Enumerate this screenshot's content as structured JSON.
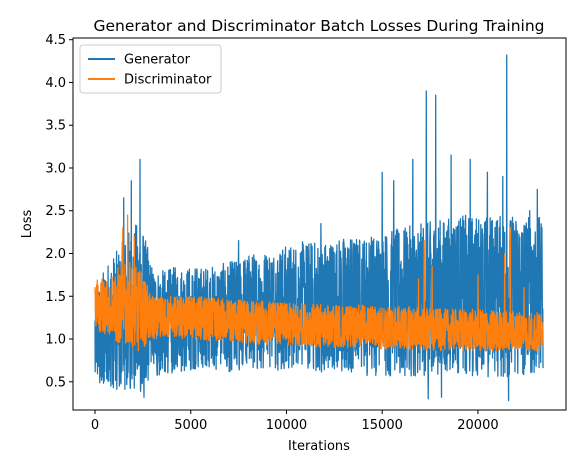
{
  "chart_data": {
    "type": "line",
    "title": "Generator and Discriminator Batch Losses During Training",
    "xlabel": "Iterations",
    "ylabel": "Loss",
    "xlim": [
      -1150,
      24600
    ],
    "ylim": [
      0.17,
      4.52
    ],
    "x_ticks": [
      0,
      5000,
      10000,
      15000,
      20000
    ],
    "x_tick_labels": [
      "0",
      "5000",
      "10000",
      "15000",
      "20000"
    ],
    "y_ticks": [
      0.5,
      1.0,
      1.5,
      2.0,
      2.5,
      3.0,
      3.5,
      4.0,
      4.5
    ],
    "y_tick_labels": [
      "0.5",
      "1.0",
      "1.5",
      "2.0",
      "2.5",
      "3.0",
      "3.5",
      "4.0",
      "4.5"
    ],
    "grid": false,
    "legend_position": "top-left",
    "series": [
      {
        "name": "Generator",
        "color": "#1f77b4",
        "x": [
          0,
          600,
          1200,
          1800,
          2400,
          3000,
          3600,
          4200,
          4800,
          5400,
          6000,
          7000,
          8000,
          9000,
          10000,
          11000,
          12000,
          13000,
          14000,
          15000,
          16000,
          17000,
          18000,
          19000,
          20000,
          21000,
          22000,
          23000,
          23400
        ],
        "mean": [
          0.95,
          1.05,
          1.15,
          1.25,
          1.3,
          1.15,
          1.2,
          1.2,
          1.22,
          1.25,
          1.25,
          1.28,
          1.3,
          1.32,
          1.35,
          1.38,
          1.4,
          1.42,
          1.45,
          1.48,
          1.5,
          1.52,
          1.55,
          1.55,
          1.56,
          1.58,
          1.58,
          1.6,
          1.6
        ],
        "low": [
          0.48,
          0.45,
          0.4,
          0.4,
          0.38,
          0.55,
          0.6,
          0.6,
          0.62,
          0.65,
          0.65,
          0.62,
          0.65,
          0.65,
          0.62,
          0.62,
          0.6,
          0.6,
          0.58,
          0.55,
          0.55,
          0.55,
          0.55,
          0.55,
          0.55,
          0.55,
          0.55,
          0.58,
          0.6
        ],
        "high": [
          1.55,
          1.9,
          2.05,
          2.3,
          2.4,
          1.85,
          1.8,
          1.85,
          1.85,
          1.85,
          1.85,
          1.9,
          2.0,
          2.05,
          2.1,
          2.15,
          2.15,
          2.2,
          2.2,
          2.25,
          2.3,
          2.35,
          2.4,
          2.45,
          2.45,
          2.45,
          2.45,
          2.45,
          2.4
        ],
        "spikes": [
          [
            1500,
            2.65
          ],
          [
            1900,
            2.85
          ],
          [
            2350,
            3.1
          ],
          [
            2550,
            0.32
          ],
          [
            7500,
            2.15
          ],
          [
            11800,
            2.35
          ],
          [
            15000,
            2.95
          ],
          [
            15600,
            2.85
          ],
          [
            16600,
            3.1
          ],
          [
            17300,
            3.9
          ],
          [
            17400,
            0.3
          ],
          [
            17800,
            3.85
          ],
          [
            18100,
            0.32
          ],
          [
            18600,
            3.15
          ],
          [
            19600,
            3.1
          ],
          [
            20500,
            2.95
          ],
          [
            21300,
            2.9
          ],
          [
            21500,
            4.32
          ],
          [
            21600,
            0.28
          ],
          [
            22700,
            2.5
          ],
          [
            23100,
            2.75
          ]
        ]
      },
      {
        "name": "Discriminator",
        "color": "#ff7f0e",
        "x": [
          0,
          600,
          1200,
          1800,
          2400,
          3000,
          3600,
          4200,
          4800,
          5400,
          6000,
          7000,
          8000,
          9000,
          10000,
          11000,
          12000,
          13000,
          14000,
          15000,
          16000,
          17000,
          18000,
          19000,
          20000,
          21000,
          22000,
          23000,
          23400
        ],
        "mean": [
          1.35,
          1.3,
          1.25,
          1.3,
          1.2,
          1.22,
          1.22,
          1.22,
          1.2,
          1.2,
          1.2,
          1.2,
          1.18,
          1.17,
          1.16,
          1.15,
          1.14,
          1.13,
          1.12,
          1.1,
          1.1,
          1.08,
          1.07,
          1.06,
          1.06,
          1.05,
          1.04,
          1.03,
          1.03
        ],
        "low": [
          1.1,
          1.05,
          0.95,
          0.9,
          0.85,
          1.0,
          1.02,
          1.02,
          1.0,
          1.0,
          0.98,
          0.97,
          0.95,
          0.93,
          0.92,
          0.92,
          0.9,
          0.9,
          0.9,
          0.88,
          0.88,
          0.87,
          0.86,
          0.86,
          0.86,
          0.86,
          0.86,
          0.86,
          0.86
        ],
        "high": [
          1.68,
          1.75,
          1.85,
          1.9,
          1.8,
          1.5,
          1.5,
          1.5,
          1.5,
          1.5,
          1.48,
          1.48,
          1.45,
          1.45,
          1.42,
          1.42,
          1.4,
          1.4,
          1.4,
          1.38,
          1.38,
          1.38,
          1.35,
          1.35,
          1.35,
          1.33,
          1.33,
          1.32,
          1.32
        ],
        "spikes": [
          [
            1450,
            2.3
          ],
          [
            1700,
            2.45
          ],
          [
            2050,
            2.2
          ],
          [
            16900,
            1.7
          ],
          [
            17200,
            2.15
          ],
          [
            17600,
            1.85
          ],
          [
            20000,
            1.75
          ],
          [
            21400,
            2.0
          ],
          [
            21700,
            2.3
          ],
          [
            22400,
            1.6
          ]
        ]
      }
    ]
  }
}
